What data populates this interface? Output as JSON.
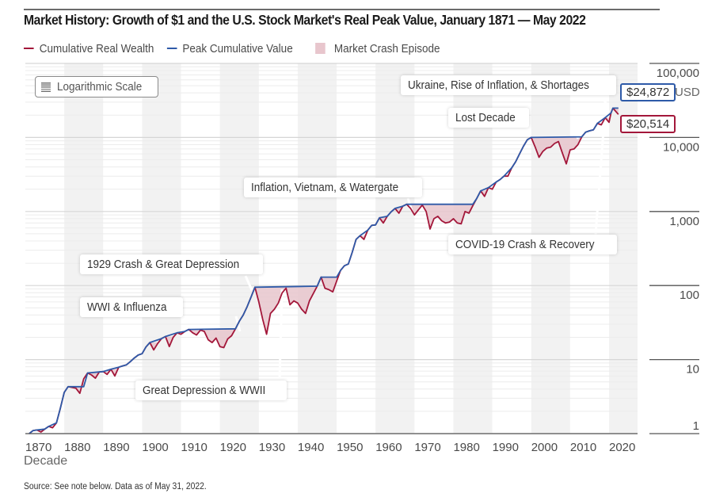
{
  "title": "Market History: Growth of $1 and the U.S. Stock Market's Real Peak Value, January 1871 — May 2022",
  "legend": [
    {
      "label": "Cumulative Real Wealth",
      "type": "line",
      "color": "#a3173a"
    },
    {
      "label": "Peak Cumulative Value",
      "type": "line",
      "color": "#2e5aa8"
    },
    {
      "label": "Market Crash Episode",
      "type": "box",
      "color": "#e8c6cd"
    }
  ],
  "scale_badge": {
    "icon": "list-lines-icon",
    "label": "Logarithmic Scale"
  },
  "unit_label": "USD",
  "x_axis_title": "Decade",
  "source": "Source: See note below. Data as of May 31, 2022.",
  "callouts": {
    "peak": {
      "label": "$24,872",
      "color": "#2e5aa8"
    },
    "current": {
      "label": "$20,514",
      "color": "#a3173a"
    }
  },
  "annotations": [
    {
      "label": "Ukraine, Rise of Inflation, & Shortages"
    },
    {
      "label": "Lost Decade"
    },
    {
      "label": "Inflation, Vietnam, & Watergate"
    },
    {
      "label": "COVID-19 Crash & Recovery"
    },
    {
      "label": "1929 Crash & Great Depression"
    },
    {
      "label": "WWI & Influenza"
    },
    {
      "label": "Great Depression & WWII"
    }
  ],
  "chart_data": {
    "type": "line",
    "title": "Market History: Growth of $1 and the U.S. Stock Market's Real Peak Value, January 1871 — May 2022",
    "xlabel": "Decade",
    "ylabel": "USD",
    "y_scale": "log",
    "xlim": [
      1870,
      2027
    ],
    "ylim": [
      1,
      100000
    ],
    "x_ticks": [
      "1870",
      "1880",
      "1890",
      "1900",
      "1910",
      "1920",
      "1930",
      "1940",
      "1950",
      "1960",
      "1970",
      "1980",
      "1990",
      "2000",
      "2010",
      "2020"
    ],
    "y_ticks": [
      "1",
      "10",
      "100",
      "1,000",
      "10,000",
      "100,000"
    ],
    "grid": true,
    "legend_position": "top-left",
    "series": [
      {
        "name": "Cumulative Real Wealth",
        "color": "#a3173a",
        "points": [
          [
            1871,
            1
          ],
          [
            1872,
            1.1
          ],
          [
            1873,
            1.12
          ],
          [
            1874,
            1.05
          ],
          [
            1875,
            1.15
          ],
          [
            1876,
            1.25
          ],
          [
            1877,
            1.2
          ],
          [
            1878,
            1.4
          ],
          [
            1879,
            2.2
          ],
          [
            1880,
            3.6
          ],
          [
            1881,
            4.3
          ],
          [
            1882,
            4.2
          ],
          [
            1883,
            4.1
          ],
          [
            1884,
            3.5
          ],
          [
            1885,
            5.5
          ],
          [
            1886,
            6.6
          ],
          [
            1887,
            6.2
          ],
          [
            1888,
            5.6
          ],
          [
            1889,
            6.8
          ],
          [
            1890,
            6.9
          ],
          [
            1891,
            6.3
          ],
          [
            1892,
            7.4
          ],
          [
            1893,
            6.0
          ],
          [
            1894,
            7.9
          ],
          [
            1895,
            8.2
          ],
          [
            1896,
            8.5
          ],
          [
            1897,
            9.4
          ],
          [
            1898,
            10.5
          ],
          [
            1899,
            11.5
          ],
          [
            1900,
            12.0
          ],
          [
            1901,
            14.8
          ],
          [
            1902,
            17.0
          ],
          [
            1903,
            13.5
          ],
          [
            1904,
            16.5
          ],
          [
            1905,
            19.2
          ],
          [
            1906,
            20.5
          ],
          [
            1907,
            15.0
          ],
          [
            1908,
            20.0
          ],
          [
            1909,
            23.0
          ],
          [
            1910,
            22.0
          ],
          [
            1911,
            24.0
          ],
          [
            1912,
            25.5
          ],
          [
            1913,
            23.0
          ],
          [
            1914,
            21.5
          ],
          [
            1915,
            25.0
          ],
          [
            1916,
            24.0
          ],
          [
            1917,
            18.5
          ],
          [
            1918,
            17.0
          ],
          [
            1919,
            19.5
          ],
          [
            1920,
            15.0
          ],
          [
            1921,
            14.5
          ],
          [
            1922,
            19.0
          ],
          [
            1923,
            21.0
          ],
          [
            1924,
            26.0
          ],
          [
            1925,
            33.0
          ],
          [
            1926,
            40.0
          ],
          [
            1927,
            52.0
          ],
          [
            1928,
            70.0
          ],
          [
            1929,
            95.0
          ],
          [
            1930,
            60.0
          ],
          [
            1931,
            35.0
          ],
          [
            1932,
            22.0
          ],
          [
            1933,
            42.0
          ],
          [
            1934,
            48.0
          ],
          [
            1935,
            58.0
          ],
          [
            1936,
            80.0
          ],
          [
            1937,
            92.0
          ],
          [
            1938,
            55.0
          ],
          [
            1939,
            62.0
          ],
          [
            1940,
            58.0
          ],
          [
            1941,
            48.0
          ],
          [
            1942,
            42.0
          ],
          [
            1943,
            62.0
          ],
          [
            1944,
            78.0
          ],
          [
            1945,
            98.0
          ],
          [
            1946,
            130.0
          ],
          [
            1947,
            92.0
          ],
          [
            1948,
            88.0
          ],
          [
            1949,
            82.0
          ],
          [
            1950,
            115.0
          ],
          [
            1951,
            160.0
          ],
          [
            1952,
            185.0
          ],
          [
            1953,
            195.0
          ],
          [
            1954,
            280.0
          ],
          [
            1955,
            420.0
          ],
          [
            1956,
            470.0
          ],
          [
            1957,
            420.0
          ],
          [
            1958,
            560.0
          ],
          [
            1959,
            650.0
          ],
          [
            1960,
            660.0
          ],
          [
            1961,
            820.0
          ],
          [
            1962,
            700.0
          ],
          [
            1963,
            860.0
          ],
          [
            1964,
            990.0
          ],
          [
            1965,
            1100.0
          ],
          [
            1966,
            950.0
          ],
          [
            1967,
            1180.0
          ],
          [
            1968,
            1250.0
          ],
          [
            1969,
            1100.0
          ],
          [
            1970,
            900.0
          ],
          [
            1971,
            1050.0
          ],
          [
            1972,
            1220.0
          ],
          [
            1973,
            1000.0
          ],
          [
            1974,
            580.0
          ],
          [
            1975,
            800.0
          ],
          [
            1976,
            860.0
          ],
          [
            1977,
            750.0
          ],
          [
            1978,
            700.0
          ],
          [
            1979,
            720.0
          ],
          [
            1980,
            800.0
          ],
          [
            1981,
            700.0
          ],
          [
            1982,
            680.0
          ],
          [
            1983,
            1000.0
          ],
          [
            1984,
            950.0
          ],
          [
            1985,
            1200.0
          ],
          [
            1986,
            1500.0
          ],
          [
            1987,
            1900.0
          ],
          [
            1988,
            1600.0
          ],
          [
            1989,
            2100.0
          ],
          [
            1990,
            2000.0
          ],
          [
            1991,
            2500.0
          ],
          [
            1992,
            2700.0
          ],
          [
            1993,
            3000.0
          ],
          [
            1994,
            3000.0
          ],
          [
            1995,
            3900.0
          ],
          [
            1996,
            4700.0
          ],
          [
            1997,
            6000.0
          ],
          [
            1998,
            7600.0
          ],
          [
            1999,
            9300.0
          ],
          [
            2000,
            10000.0
          ],
          [
            2001,
            7500.0
          ],
          [
            2002,
            5400.0
          ],
          [
            2003,
            6500.0
          ],
          [
            2004,
            7200.0
          ],
          [
            2005,
            7400.0
          ],
          [
            2006,
            8300.0
          ],
          [
            2007,
            8800.0
          ],
          [
            2008,
            6200.0
          ],
          [
            2009,
            4400.0
          ],
          [
            2010,
            6800.0
          ],
          [
            2011,
            7000.0
          ],
          [
            2012,
            8000.0
          ],
          [
            2013,
            10200.0
          ],
          [
            2014,
            11800.0
          ],
          [
            2015,
            12300.0
          ],
          [
            2016,
            12700.0
          ],
          [
            2017,
            15500.0
          ],
          [
            2018,
            14800.0
          ],
          [
            2019,
            18500.0
          ],
          [
            2020,
            16000.0
          ],
          [
            2020.5,
            21500.0
          ],
          [
            2021,
            24872.0
          ],
          [
            2022.4,
            20514.0
          ]
        ]
      },
      {
        "name": "Peak Cumulative Value",
        "color": "#2e5aa8",
        "points": [
          [
            1871,
            1
          ],
          [
            1872,
            1.1
          ],
          [
            1873,
            1.12
          ],
          [
            1875,
            1.15
          ],
          [
            1876,
            1.25
          ],
          [
            1878,
            1.4
          ],
          [
            1879,
            2.2
          ],
          [
            1880,
            3.6
          ],
          [
            1881,
            4.3
          ],
          [
            1885,
            4.3
          ],
          [
            1886,
            6.6
          ],
          [
            1889,
            6.8
          ],
          [
            1890,
            6.9
          ],
          [
            1892,
            7.4
          ],
          [
            1894,
            7.9
          ],
          [
            1895,
            8.2
          ],
          [
            1896,
            8.5
          ],
          [
            1897,
            9.4
          ],
          [
            1898,
            10.5
          ],
          [
            1899,
            11.5
          ],
          [
            1900,
            12.0
          ],
          [
            1901,
            14.8
          ],
          [
            1902,
            17.0
          ],
          [
            1905,
            19.2
          ],
          [
            1906,
            20.5
          ],
          [
            1909,
            23.0
          ],
          [
            1911,
            24.0
          ],
          [
            1912,
            25.5
          ],
          [
            1924,
            26.0
          ],
          [
            1925,
            33.0
          ],
          [
            1926,
            40.0
          ],
          [
            1927,
            52.0
          ],
          [
            1928,
            70.0
          ],
          [
            1929,
            95.0
          ],
          [
            1945,
            98.0
          ],
          [
            1946,
            130.0
          ],
          [
            1950,
            130.0
          ],
          [
            1951,
            160.0
          ],
          [
            1952,
            185.0
          ],
          [
            1953,
            195.0
          ],
          [
            1954,
            280.0
          ],
          [
            1955,
            420.0
          ],
          [
            1956,
            470.0
          ],
          [
            1958,
            560.0
          ],
          [
            1959,
            650.0
          ],
          [
            1960,
            660.0
          ],
          [
            1961,
            820.0
          ],
          [
            1963,
            860.0
          ],
          [
            1964,
            990.0
          ],
          [
            1965,
            1100.0
          ],
          [
            1967,
            1180.0
          ],
          [
            1968,
            1250.0
          ],
          [
            1985,
            1250.0
          ],
          [
            1986,
            1500.0
          ],
          [
            1987,
            1900.0
          ],
          [
            1989,
            2100.0
          ],
          [
            1991,
            2500.0
          ],
          [
            1992,
            2700.0
          ],
          [
            1993,
            3000.0
          ],
          [
            1995,
            3900.0
          ],
          [
            1996,
            4700.0
          ],
          [
            1997,
            6000.0
          ],
          [
            1998,
            7600.0
          ],
          [
            1999,
            9300.0
          ],
          [
            2000,
            10000.0
          ],
          [
            2013,
            10200.0
          ],
          [
            2014,
            11800.0
          ],
          [
            2015,
            12300.0
          ],
          [
            2016,
            12700.0
          ],
          [
            2017,
            15500.0
          ],
          [
            2019,
            18500.0
          ],
          [
            2020.5,
            21500.0
          ],
          [
            2021,
            24872.0
          ],
          [
            2022.4,
            24872.0
          ]
        ]
      }
    ],
    "crash_episodes": [
      {
        "label": "WWI & Influenza",
        "start": 1912,
        "end": 1924
      },
      {
        "label": "1929 Crash & Great Depression",
        "start": 1929,
        "end": 1936
      },
      {
        "label": "Great Depression & WWII",
        "start": 1937,
        "end": 1945
      },
      {
        "label": "Inflation, Vietnam, & Watergate",
        "start": 1968,
        "end": 1985
      },
      {
        "label": "Lost Decade",
        "start": 2000,
        "end": 2013
      },
      {
        "label": "COVID-19 Crash & Recovery",
        "start": 2020,
        "end": 2020.5
      },
      {
        "label": "Ukraine, Rise of Inflation, & Shortages",
        "start": 2022,
        "end": 2022.4
      }
    ],
    "callouts": [
      {
        "series": "Peak Cumulative Value",
        "label": "$24,872",
        "value": 24872
      },
      {
        "series": "Cumulative Real Wealth",
        "label": "$20,514",
        "value": 20514
      }
    ]
  }
}
